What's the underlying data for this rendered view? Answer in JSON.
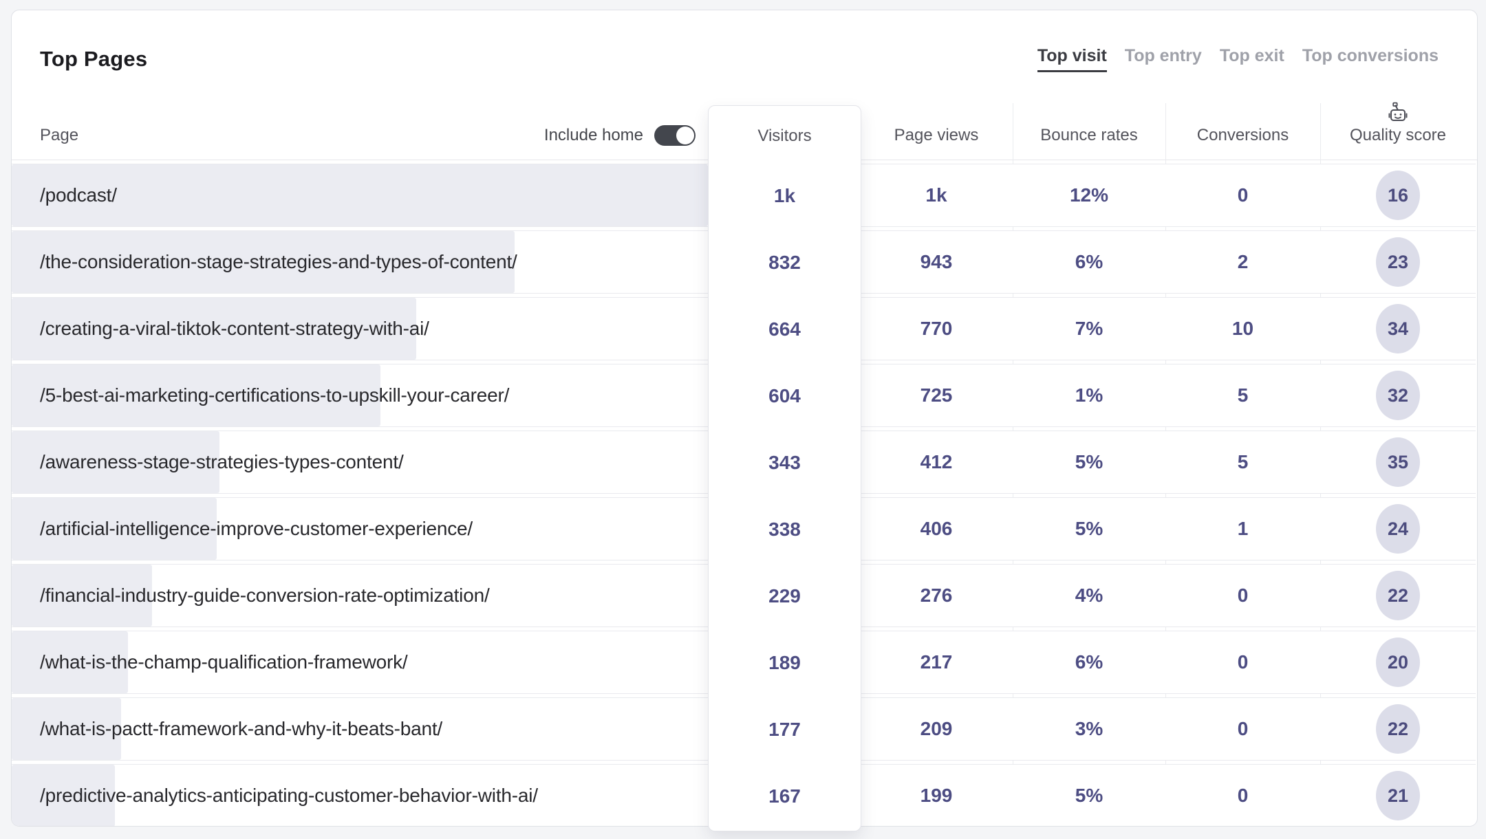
{
  "widget": {
    "title": "Top Pages",
    "tabs": [
      {
        "label": "Top visit",
        "active": true
      },
      {
        "label": "Top entry",
        "active": false
      },
      {
        "label": "Top exit",
        "active": false
      },
      {
        "label": "Top conversions",
        "active": false
      }
    ]
  },
  "table": {
    "page_col_label": "Page",
    "include_home_label": "Include home",
    "include_home_on": true,
    "columns": {
      "visitors": "Visitors",
      "page_views": "Page views",
      "bounce_rates": "Bounce rates",
      "conversions": "Conversions",
      "quality_score": "Quality score"
    },
    "quality_icon": "robot-icon",
    "rows": [
      {
        "path": "/podcast/",
        "visitors": "1k",
        "page_views": "1k",
        "bounce_rate": "12%",
        "conversions": "0",
        "quality_score": "16",
        "bar_pct": 100
      },
      {
        "path": "/the-consideration-stage-strategies-and-types-of-content/",
        "visitors": "832",
        "page_views": "943",
        "bounce_rate": "6%",
        "conversions": "2",
        "quality_score": "23",
        "bar_pct": 72.2
      },
      {
        "path": "/creating-a-viral-tiktok-content-strategy-with-ai/",
        "visitors": "664",
        "page_views": "770",
        "bounce_rate": "7%",
        "conversions": "10",
        "quality_score": "34",
        "bar_pct": 58.1
      },
      {
        "path": "/5-best-ai-marketing-certifications-to-upskill-your-career/",
        "visitors": "604",
        "page_views": "725",
        "bounce_rate": "1%",
        "conversions": "5",
        "quality_score": "32",
        "bar_pct": 53.0
      },
      {
        "path": "/awareness-stage-strategies-types-content/",
        "visitors": "343",
        "page_views": "412",
        "bounce_rate": "5%",
        "conversions": "5",
        "quality_score": "35",
        "bar_pct": 29.8
      },
      {
        "path": "/artificial-intelligence-improve-customer-experience/",
        "visitors": "338",
        "page_views": "406",
        "bounce_rate": "5%",
        "conversions": "1",
        "quality_score": "24",
        "bar_pct": 29.4
      },
      {
        "path": "/financial-industry-guide-conversion-rate-optimization/",
        "visitors": "229",
        "page_views": "276",
        "bounce_rate": "4%",
        "conversions": "0",
        "quality_score": "22",
        "bar_pct": 20.2
      },
      {
        "path": "/what-is-the-champ-qualification-framework/",
        "visitors": "189",
        "page_views": "217",
        "bounce_rate": "6%",
        "conversions": "0",
        "quality_score": "20",
        "bar_pct": 16.7
      },
      {
        "path": "/what-is-pactt-framework-and-why-it-beats-bant/",
        "visitors": "177",
        "page_views": "209",
        "bounce_rate": "3%",
        "conversions": "0",
        "quality_score": "22",
        "bar_pct": 15.7
      },
      {
        "path": "/predictive-analytics-anticipating-customer-behavior-with-ai/",
        "visitors": "167",
        "page_views": "199",
        "bounce_rate": "5%",
        "conversions": "0",
        "quality_score": "21",
        "bar_pct": 14.8
      }
    ]
  },
  "colors": {
    "accent_purple": "#4d4d83",
    "bar_fill": "#ebecf2",
    "quality_badge_bg": "#dcdde9",
    "active_tab": "#3b3c42",
    "inactive_tab": "#9fa1a9",
    "toggle_on_bg": "#43464d",
    "page_background": "#f4f5f7"
  }
}
